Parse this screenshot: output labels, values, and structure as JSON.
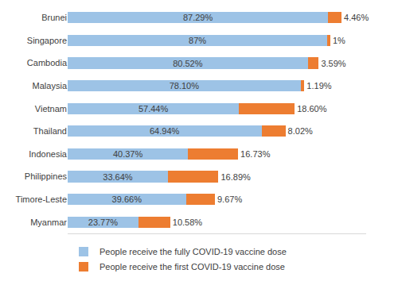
{
  "chart_data": {
    "type": "bar",
    "orientation": "horizontal",
    "stacked": true,
    "data_labels": true,
    "grid": false,
    "legend": "bottom",
    "tick_labels": "y",
    "xlim": [
      0,
      100
    ],
    "categories": [
      "Brunei",
      "Singapore",
      "Cambodia",
      "Malaysia",
      "Vietnam",
      "Thailand",
      "Indonesia",
      "Philippines",
      "Timore-Leste",
      "Myanmar"
    ],
    "series": [
      {
        "name": "People receive the fully COVID-19 vaccine dose",
        "color": "#9dc3e6",
        "values": [
          87.29,
          87,
          80.52,
          78.1,
          57.44,
          64.94,
          40.37,
          33.64,
          39.66,
          23.77
        ],
        "value_labels": [
          "87.29%",
          "87%",
          "80.52%",
          "78.10%",
          "57.44%",
          "64.94%",
          "40.37%",
          "33.64%",
          "39.66%",
          "23.77%"
        ]
      },
      {
        "name": "People receive the first COVID-19 vaccine dose",
        "color": "#ed7d31",
        "values": [
          4.46,
          1,
          3.59,
          1.19,
          18.6,
          8.02,
          16.73,
          16.89,
          9.67,
          10.58
        ],
        "value_labels": [
          "4.46%",
          "1%",
          "3.59%",
          "1.19%",
          "18.60%",
          "8.02%",
          "16.73%",
          "16.89%",
          "9.67%",
          "10.58%"
        ]
      }
    ]
  }
}
